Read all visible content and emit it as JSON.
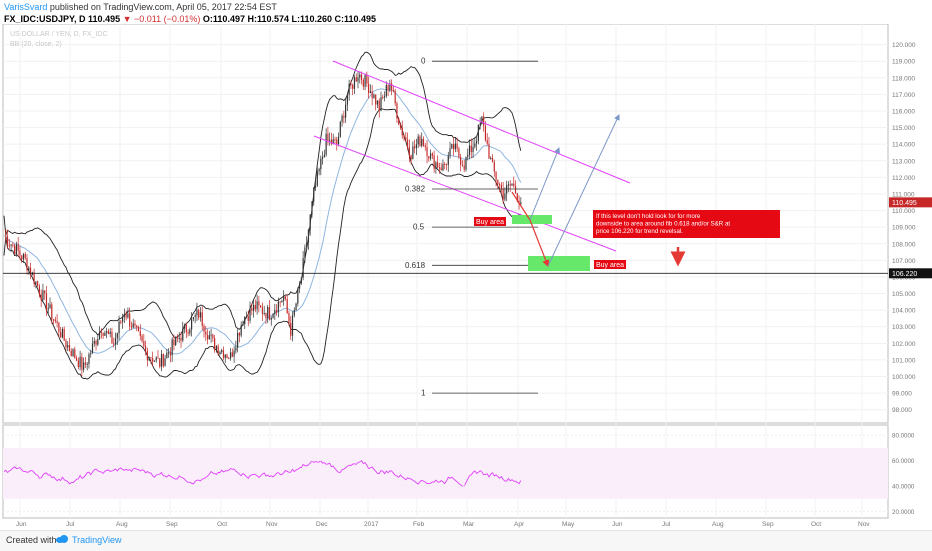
{
  "header": {
    "author": "VarisSvard",
    "published_text": "published on TradingView.com, April 05, 2017 22:54 EST",
    "symbol": "FX_IDC:USDJPY, D",
    "price": "110.495",
    "change": "▼ −0.011 (−0.01%)",
    "ohlc": "O:110.497 H:110.574 L:110.260 C:110.495",
    "watermark_title": "US DOLLAR / YEN, D, FX_IDC",
    "watermark_indicator": "BB (20, close, 2)"
  },
  "footer": {
    "created_with": "Created with",
    "brand": "TradingView"
  },
  "colors": {
    "candle_up": "#333333",
    "candle_down": "#c62828",
    "bollinger": "#222222",
    "basis": "#8fb6e0",
    "channel": "#e040fb",
    "rsi": "#e040fb",
    "arrow_down": "#e53935",
    "arrow_up": "#7b96c8",
    "buy_zone": "#66e86a",
    "annotation_bg": "#e50914"
  },
  "chart_data": {
    "type": "candlestick",
    "symbol": "USDJPY",
    "timeframe": "D",
    "y_axis_ticks": [
      120.0,
      119.0,
      118.0,
      117.0,
      116.0,
      115.0,
      114.0,
      113.0,
      112.0,
      111.0,
      110.0,
      109.0,
      108.0,
      107.0,
      106.0,
      105.0,
      104.0,
      103.0,
      102.0,
      101.0,
      100.0,
      99.0,
      98.0
    ],
    "y_axis_tick_labels": [
      "120.000",
      "119.000",
      "118.000",
      "117.000",
      "116.000",
      "115.000",
      "114.000",
      "113.000",
      "112.000",
      "111.000",
      "110.000",
      "109.000",
      "108.000",
      "107.000",
      "106.000",
      "105.000",
      "104.000",
      "103.000",
      "102.000",
      "101.000",
      "100.000",
      "99.000",
      "98.000"
    ],
    "ylim": [
      97.2,
      121.0
    ],
    "x_axis_labels": [
      "Jun",
      "Jul",
      "Aug",
      "Sep",
      "Oct",
      "Nov",
      "Dec",
      "2017",
      "Feb",
      "Mar",
      "Apr",
      "May",
      "Jun",
      "Jul",
      "Aug",
      "Sep",
      "Oct",
      "Nov"
    ],
    "current_price": 110.495,
    "current_price_label": "110.495",
    "horizontal_level": 106.22,
    "horizontal_level_label": "106.220",
    "monthly_path": [
      [
        0,
        108.5
      ],
      [
        12,
        107.0
      ],
      [
        22,
        104.8
      ],
      [
        35,
        102.0
      ],
      [
        45,
        100.5
      ],
      [
        55,
        103.0
      ],
      [
        62,
        102.0
      ],
      [
        68,
        104.0
      ],
      [
        80,
        101.5
      ],
      [
        88,
        100.8
      ],
      [
        100,
        102.5
      ],
      [
        110,
        103.8
      ],
      [
        118,
        102.0
      ],
      [
        128,
        101.2
      ],
      [
        135,
        103.5
      ],
      [
        142,
        104.2
      ],
      [
        150,
        103.8
      ],
      [
        158,
        104.8
      ],
      [
        162,
        102.8
      ],
      [
        168,
        106.0
      ],
      [
        175,
        111.0
      ],
      [
        182,
        114.2
      ],
      [
        188,
        114.0
      ],
      [
        194,
        117.0
      ],
      [
        200,
        118.3
      ],
      [
        206,
        117.5
      ],
      [
        212,
        116.2
      ],
      [
        218,
        117.8
      ],
      [
        224,
        115.0
      ],
      [
        230,
        113.5
      ],
      [
        236,
        114.4
      ],
      [
        242,
        113.0
      ],
      [
        248,
        112.6
      ],
      [
        254,
        113.8
      ],
      [
        260,
        112.8
      ],
      [
        266,
        114.2
      ],
      [
        270,
        115.4
      ],
      [
        276,
        112.5
      ],
      [
        282,
        111.0
      ],
      [
        287,
        111.6
      ],
      [
        292,
        110.5
      ]
    ],
    "fib_levels": [
      {
        "ratio": "0",
        "price": 119.0
      },
      {
        "ratio": "0.382",
        "price": 111.3
      },
      {
        "ratio": "0.5",
        "price": 109.0
      },
      {
        "ratio": "0.618",
        "price": 106.7
      },
      {
        "ratio": "1",
        "price": 99.0
      }
    ],
    "annotations": {
      "buy_area_1": "Buy area",
      "buy_area_2": "Buy area",
      "note": "If this level don't hold look for for more downside to area around fib 0.618 and/or S&R at price 106.220 for trend revelsal."
    },
    "rsi": {
      "y_ticks": [
        80.0,
        60.0,
        40.0,
        20.0
      ],
      "y_tick_labels": [
        "80.0000",
        "60.0000",
        "40.0000",
        "20.0000"
      ],
      "ylim": [
        15,
        88
      ]
    }
  }
}
